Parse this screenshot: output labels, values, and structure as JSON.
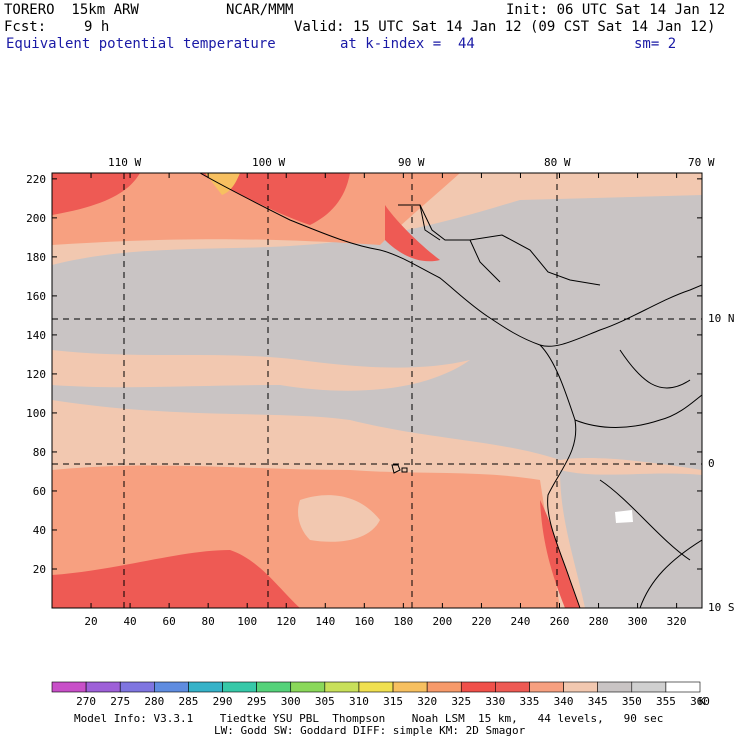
{
  "header": {
    "model": "TORERO  15km ARW",
    "org": "NCAR/MMM",
    "init": "Init: 06 UTC Sat 14 Jan 12",
    "fcst_label": "Fcst:",
    "fcst_value": "9 h",
    "valid": "Valid: 15 UTC Sat 14 Jan 12 (09 CST Sat 14 Jan 12)",
    "field": "Equivalent potential temperature",
    "level": "at k-index =  44",
    "smoothing": "sm= 2"
  },
  "map": {
    "top_lon_labels": [
      "110 W",
      "100 W",
      "90 W",
      "80 W",
      "70 W"
    ],
    "right_lat_labels": [
      "10 N",
      "0",
      "10 S"
    ],
    "y_ticks": [
      "20",
      "40",
      "60",
      "80",
      "100",
      "120",
      "140",
      "160",
      "180",
      "200",
      "220"
    ],
    "x_ticks": [
      "20",
      "40",
      "60",
      "80",
      "100",
      "120",
      "140",
      "160",
      "180",
      "200",
      "220",
      "240",
      "260",
      "280",
      "300",
      "320"
    ]
  },
  "colorbar": {
    "labels": [
      "270",
      "275",
      "280",
      "285",
      "290",
      "295",
      "300",
      "305",
      "310",
      "315",
      "320",
      "325",
      "330",
      "335",
      "340",
      "345",
      "350",
      "355",
      "360"
    ],
    "unit": "K",
    "colors": [
      "#c84fc8",
      "#9e60d8",
      "#7f75e0",
      "#5f8ce0",
      "#36b2c8",
      "#36c8a8",
      "#55d27a",
      "#8ad85a",
      "#c8e05a",
      "#f0e050",
      "#f7c060",
      "#f79a6a",
      "#f0504a",
      "#ee5a54",
      "#f7a080",
      "#f2c8b0",
      "#c9c4c4",
      "#d0d0d0",
      "#ffffff"
    ]
  },
  "footer": {
    "line1": "Model Info: V3.3.1    Tiedtke YSU PBL  Thompson    Noah LSM  15 km,   44 levels,   90 sec",
    "line2": "LW: Godd SW: Goddard DIFF: simple KM: 2D Smagor"
  }
}
